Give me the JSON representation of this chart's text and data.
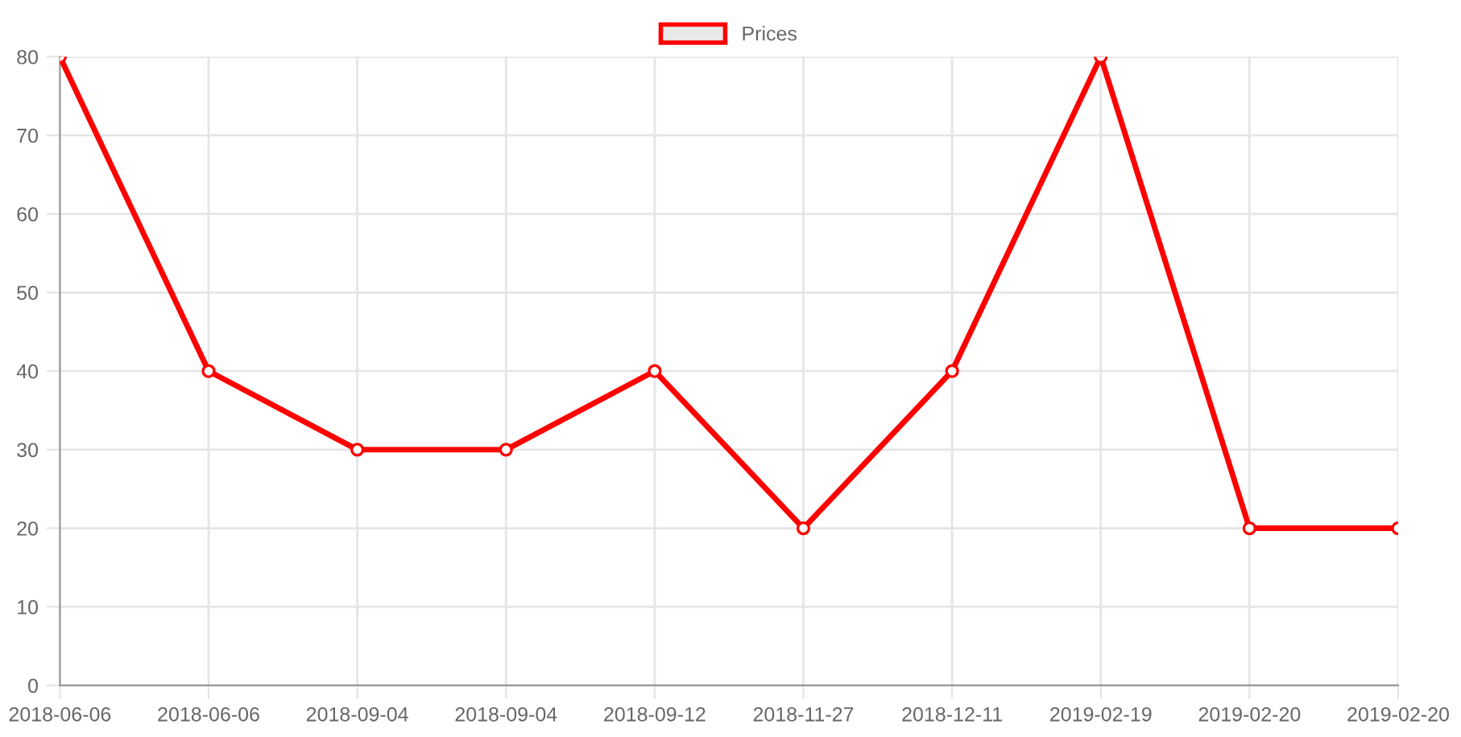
{
  "chart_data": {
    "type": "line",
    "categories": [
      "2018-06-06",
      "2018-06-06",
      "2018-09-04",
      "2018-09-04",
      "2018-09-12",
      "2018-11-27",
      "2018-12-11",
      "2019-02-19",
      "2019-02-20",
      "2019-02-20"
    ],
    "series": [
      {
        "name": "Prices",
        "color": "#ff0000",
        "values": [
          80,
          40,
          30,
          30,
          40,
          20,
          40,
          80,
          20,
          20
        ]
      }
    ],
    "ylim": [
      0,
      80
    ],
    "yticks": [
      0,
      10,
      20,
      30,
      40,
      50,
      60,
      70,
      80
    ],
    "grid": true,
    "legend": "top",
    "marker": "circle",
    "line_style": "solid"
  }
}
